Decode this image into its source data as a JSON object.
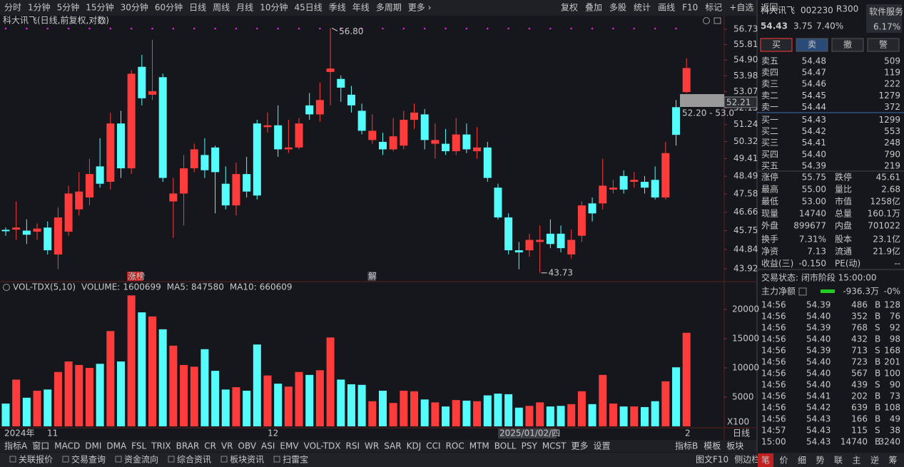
{
  "toolbar": {
    "periods": [
      "分时",
      "1分钟",
      "5分钟",
      "15分钟",
      "30分钟",
      "60分钟",
      "日线",
      "周线",
      "月线",
      "10分钟",
      "45日线",
      "季线",
      "年线",
      "多周期",
      "更多 ›"
    ],
    "active": 6,
    "tools": [
      "复权",
      "叠加",
      "多股",
      "统计",
      "画线",
      "F10",
      "标记",
      "+自选",
      "返回"
    ]
  },
  "chart_title": "科大讯飞(日线,前复权,对数)",
  "price_chart": {
    "scale": "log",
    "ylim": [
      43.39,
      56.95
    ],
    "yticks": [
      56.73,
      55.81,
      {
        "value": 54.9,
        "label": "54.90"
      },
      53.98,
      53.07,
      52.15,
      51.24,
      50.32,
      49.41,
      48.49,
      47.58,
      46.66,
      45.75,
      44.84,
      43.92
    ],
    "open": [
      45.79,
      45.8,
      45.75,
      45.7,
      45.9,
      44.6,
      45.7,
      46.8,
      47.4,
      49.0,
      48.2,
      51.3,
      48.9,
      54.5,
      52.9,
      53.9,
      47.2,
      47.6,
      48.9,
      49.6,
      50.0,
      48.1,
      47.0,
      48.6,
      51.3,
      51.1,
      51.2,
      49.9,
      50.0,
      52.3,
      51.8,
      54.2,
      53.8,
      52.9,
      52.0,
      50.4,
      50.3,
      49.9,
      50.1,
      51.5,
      51.8,
      50.2,
      50.2,
      49.8,
      50.7,
      49.8,
      50.0,
      47.9,
      46.4,
      44.8,
      44.8,
      45.2,
      45.6,
      45.6,
      44.6,
      45.5,
      47.1,
      47.1,
      47.8,
      48.5,
      48.2,
      48.2,
      48.3,
      47.4,
      52.2,
      53.05
    ],
    "high": [
      45.9,
      47.2,
      46.3,
      46.1,
      46.2,
      46.9,
      48.0,
      48.7,
      49.4,
      50.5,
      51.9,
      52.0,
      54.3,
      55.2,
      56.1,
      54.1,
      48.4,
      49.6,
      50.2,
      50.5,
      50.1,
      49.0,
      49.2,
      49.5,
      51.5,
      51.9,
      52.3,
      51.5,
      51.6,
      53.0,
      53.6,
      56.8,
      54.0,
      53.4,
      52.4,
      51.8,
      50.8,
      51.6,
      52.0,
      52.4,
      52.1,
      51.3,
      51.0,
      51.6,
      51.3,
      51.1,
      50.3,
      48.1,
      46.6,
      45.2,
      45.6,
      46.0,
      46.3,
      46.0,
      45.8,
      47.2,
      47.4,
      49.4,
      48.3,
      48.8,
      48.7,
      48.5,
      49.0,
      50.3,
      52.6,
      55.0
    ],
    "low": [
      45.5,
      45.3,
      45.1,
      45.3,
      44.6,
      43.9,
      45.5,
      46.5,
      47.0,
      47.9,
      47.8,
      48.4,
      48.6,
      52.3,
      52.6,
      48.2,
      45.4,
      46.0,
      48.7,
      48.4,
      46.6,
      46.8,
      46.5,
      47.4,
      47.3,
      50.8,
      49.5,
      49.7,
      49.9,
      51.5,
      51.4,
      52.3,
      52.5,
      51.9,
      50.7,
      50.2,
      49.6,
      49.8,
      49.9,
      51.0,
      49.9,
      49.4,
      49.6,
      49.6,
      49.7,
      49.4,
      48.2,
      46.3,
      44.6,
      43.9,
      44.5,
      43.73,
      44.9,
      44.7,
      44.4,
      45.2,
      46.2,
      46.8,
      47.6,
      47.6,
      47.9,
      47.6,
      47.3,
      47.3,
      50.1,
      53.0
    ],
    "close": [
      45.72,
      45.9,
      45.55,
      45.85,
      44.8,
      46.4,
      47.6,
      47.7,
      48.6,
      48.1,
      51.3,
      48.9,
      54.1,
      52.7,
      53.1,
      48.4,
      47.6,
      48.9,
      49.9,
      48.8,
      48.7,
      47.0,
      48.6,
      47.7,
      47.5,
      51.2,
      49.9,
      50.0,
      51.3,
      51.8,
      52.6,
      54.4,
      53.3,
      52.3,
      50.9,
      50.9,
      49.9,
      50.6,
      51.5,
      51.9,
      50.4,
      50.4,
      49.8,
      50.7,
      49.9,
      50.0,
      48.4,
      46.4,
      44.8,
      44.7,
      45.3,
      45.3,
      45.1,
      44.9,
      45.3,
      47.0,
      46.6,
      48.0,
      47.9,
      47.8,
      48.3,
      47.9,
      47.4,
      49.7,
      50.68,
      54.43
    ],
    "up_color": "#ff3c3c",
    "down_color": "#54fcfc",
    "max_label": "56.80",
    "min_label": "43.73",
    "cursor_price": "52.21",
    "cursor_range": "52.20 - 53.0",
    "badges": [
      "涨榜",
      "解"
    ]
  },
  "volume_chart": {
    "title": "VOL-TDX(5,10)",
    "volume_label": "VOLUME:",
    "volume": 1600699,
    "ma5_label": "MA5:",
    "ma5": 847580,
    "ma10_label": "MA10:",
    "ma10": 660609,
    "ylim": [
      0,
      22560
    ],
    "yticks": [
      5000,
      10000,
      15000,
      20000
    ],
    "unit": "X100",
    "values": [
      3900,
      8000,
      4900,
      6100,
      6300,
      9300,
      11100,
      10500,
      10000,
      10700,
      16300,
      11100,
      22400,
      19500,
      18800,
      16600,
      13800,
      10500,
      10200,
      13200,
      9500,
      6300,
      6700,
      6100,
      14000,
      8700,
      7300,
      6800,
      9300,
      8800,
      9600,
      15200,
      8000,
      7200,
      7100,
      4300,
      6100,
      4000,
      6100,
      6000,
      4600,
      4100,
      3400,
      4500,
      4400,
      4300,
      5300,
      5600,
      5500,
      3200,
      3500,
      4100,
      3400,
      3500,
      3800,
      6000,
      3800,
      8800,
      3900,
      3400,
      3400,
      3300,
      4300,
      7700,
      10100,
      16007
    ]
  },
  "date_labels": [
    "2024年",
    "11",
    "12",
    "2025/01/02/四",
    "2"
  ],
  "period_label": "日线",
  "indicator_tabs": [
    "指标A",
    "窗口",
    "MACD",
    "DMI",
    "DMA",
    "FSL",
    "TRIX",
    "BRAR",
    "CR",
    "VR",
    "OBV",
    "ASI",
    "EMV",
    "VOL-TDX",
    "RSI",
    "WR",
    "SAR",
    "KDJ",
    "CCI",
    "ROC",
    "MTM",
    "BOLL",
    "PSY",
    "MCST",
    "更多",
    "设置"
  ],
  "indicator_active": 13,
  "indicator_right": [
    "指标B",
    "模板",
    "板块"
  ],
  "bottom_bar": {
    "items": [
      "关联报价",
      "交易查询",
      "资金流向",
      "综合资讯",
      "板块资讯",
      "扫雷宝"
    ],
    "right": [
      "图文F10",
      "侧边栏"
    ],
    "tabs": [
      "笔",
      "价",
      "细",
      "势",
      "联",
      "主",
      "逆",
      "筹"
    ]
  },
  "quote": {
    "name": "科大讯飞",
    "code": "002230",
    "tag": "R300",
    "price": "54.43",
    "change": "3.75",
    "pct": "7.40%",
    "sector": "软件服务",
    "sector_pct": "6.17%"
  },
  "buttons": [
    "买",
    "卖",
    "撤",
    "警"
  ],
  "order_book": [
    [
      "卖五",
      "54.48",
      "509"
    ],
    [
      "卖四",
      "54.47",
      "119"
    ],
    [
      "卖三",
      "54.46",
      "222"
    ],
    [
      "卖二",
      "54.45",
      "1279"
    ],
    [
      "卖一",
      "54.44",
      "372"
    ],
    [
      "买一",
      "54.43",
      "1299"
    ],
    [
      "买二",
      "54.42",
      "553"
    ],
    [
      "买三",
      "54.41",
      "248"
    ],
    [
      "买四",
      "54.40",
      "790"
    ],
    [
      "买五",
      "54.39",
      "219"
    ]
  ],
  "stats": [
    [
      "涨停",
      "55.75",
      "跌停",
      "45.61"
    ],
    [
      "最高",
      "55.00",
      "量比",
      "2.68"
    ],
    [
      "最低",
      "53.00",
      "市值",
      "1258亿"
    ],
    [
      "现量",
      "14740",
      "总量",
      "160.1万"
    ],
    [
      "外盘",
      "899677",
      "内盘",
      "701022"
    ],
    [
      "换手",
      "7.31%",
      "股本",
      "23.1亿"
    ],
    [
      "净资",
      "7.13",
      "流通",
      "21.9亿"
    ],
    [
      "收益(三)",
      "-0.150",
      "PE(动)",
      "--"
    ]
  ],
  "status": "交易状态: 闭市阶段 15:00:00",
  "main_flow": {
    "label": "主力净额",
    "value": "-936.3万",
    "pct": "-0%"
  },
  "trades": [
    [
      "14:56",
      "54.39",
      "486",
      "B",
      "128"
    ],
    [
      "14:56",
      "54.40",
      "352",
      "B",
      "76"
    ],
    [
      "14:56",
      "54.39",
      "768",
      "S",
      "92"
    ],
    [
      "14:56",
      "54.40",
      "432",
      "B",
      "98"
    ],
    [
      "14:56",
      "54.39",
      "713",
      "S",
      "168"
    ],
    [
      "14:56",
      "54.40",
      "723",
      "B",
      "201"
    ],
    [
      "14:56",
      "54.40",
      "567",
      "B",
      "100"
    ],
    [
      "14:56",
      "54.40",
      "439",
      "S",
      "90"
    ],
    [
      "14:56",
      "54.41",
      "202",
      "B",
      "73"
    ],
    [
      "14:56",
      "54.42",
      "639",
      "B",
      "108"
    ],
    [
      "14:56",
      "54.43",
      "166",
      "B",
      "49"
    ],
    [
      "14:57",
      "54.43",
      "115",
      "S",
      "38"
    ],
    [
      "15:00",
      "54.43",
      "14740",
      "B",
      "3240"
    ]
  ]
}
